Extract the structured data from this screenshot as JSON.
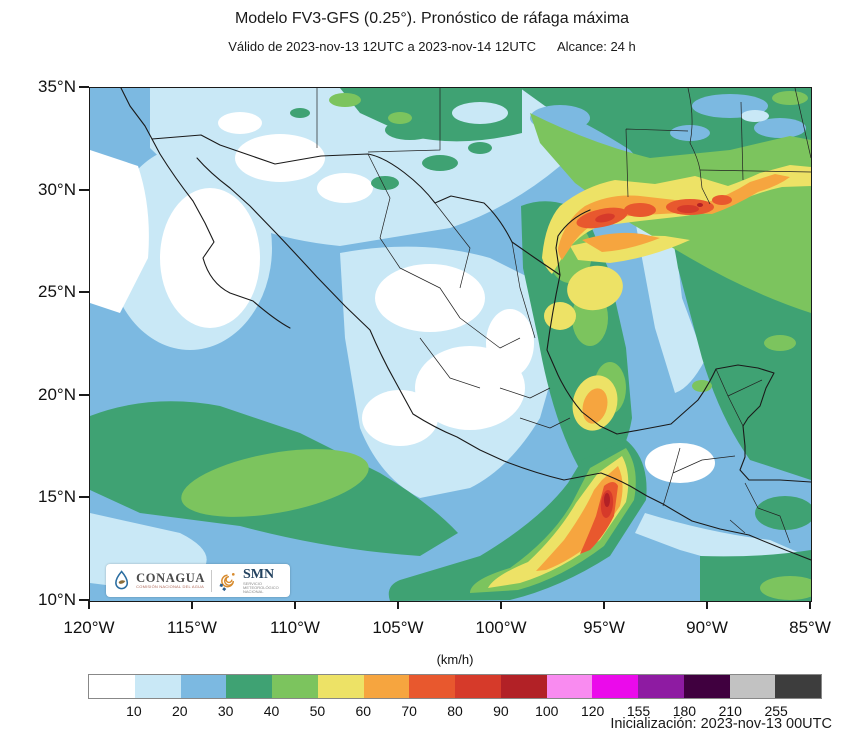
{
  "header": {
    "title": "Modelo FV3-GFS (0.25°). Pronóstico de ráfaga máxima",
    "valid": "Válido de 2023-nov-13 12UTC a 2023-nov-14 12UTC",
    "reach": "Alcance: 24 h"
  },
  "axes": {
    "lat_ticks": [
      "35°N",
      "30°N",
      "25°N",
      "20°N",
      "15°N",
      "10°N"
    ],
    "lon_ticks": [
      "120°W",
      "115°W",
      "110°W",
      "105°W",
      "100°W",
      "95°W",
      "90°W",
      "85°W"
    ]
  },
  "colorbar": {
    "unit_label": "(km/h)",
    "boundary_labels": [
      "10",
      "20",
      "30",
      "40",
      "50",
      "60",
      "70",
      "80",
      "90",
      "100",
      "120",
      "155",
      "180",
      "210",
      "255"
    ],
    "colors": [
      "#ffffff",
      "#c9e8f6",
      "#7cb9e1",
      "#3fa273",
      "#7cc45e",
      "#ede266",
      "#f6a53f",
      "#e8582e",
      "#d63a2a",
      "#b22126",
      "#f98bf0",
      "#eb0aeb",
      "#8e1ba2",
      "#40003f",
      "#c2c2c2",
      "#3d3d3d"
    ]
  },
  "branding": {
    "conagua_name": "CONAGUA",
    "conagua_sub": "COMISIÓN NACIONAL DEL AGUA",
    "smn_name": "SMN",
    "smn_sub": "SERVICIO METEOROLÓGICO NACIONAL"
  },
  "footer": {
    "initialization": "Inicialización: 2023-nov-13 00UTC"
  }
}
